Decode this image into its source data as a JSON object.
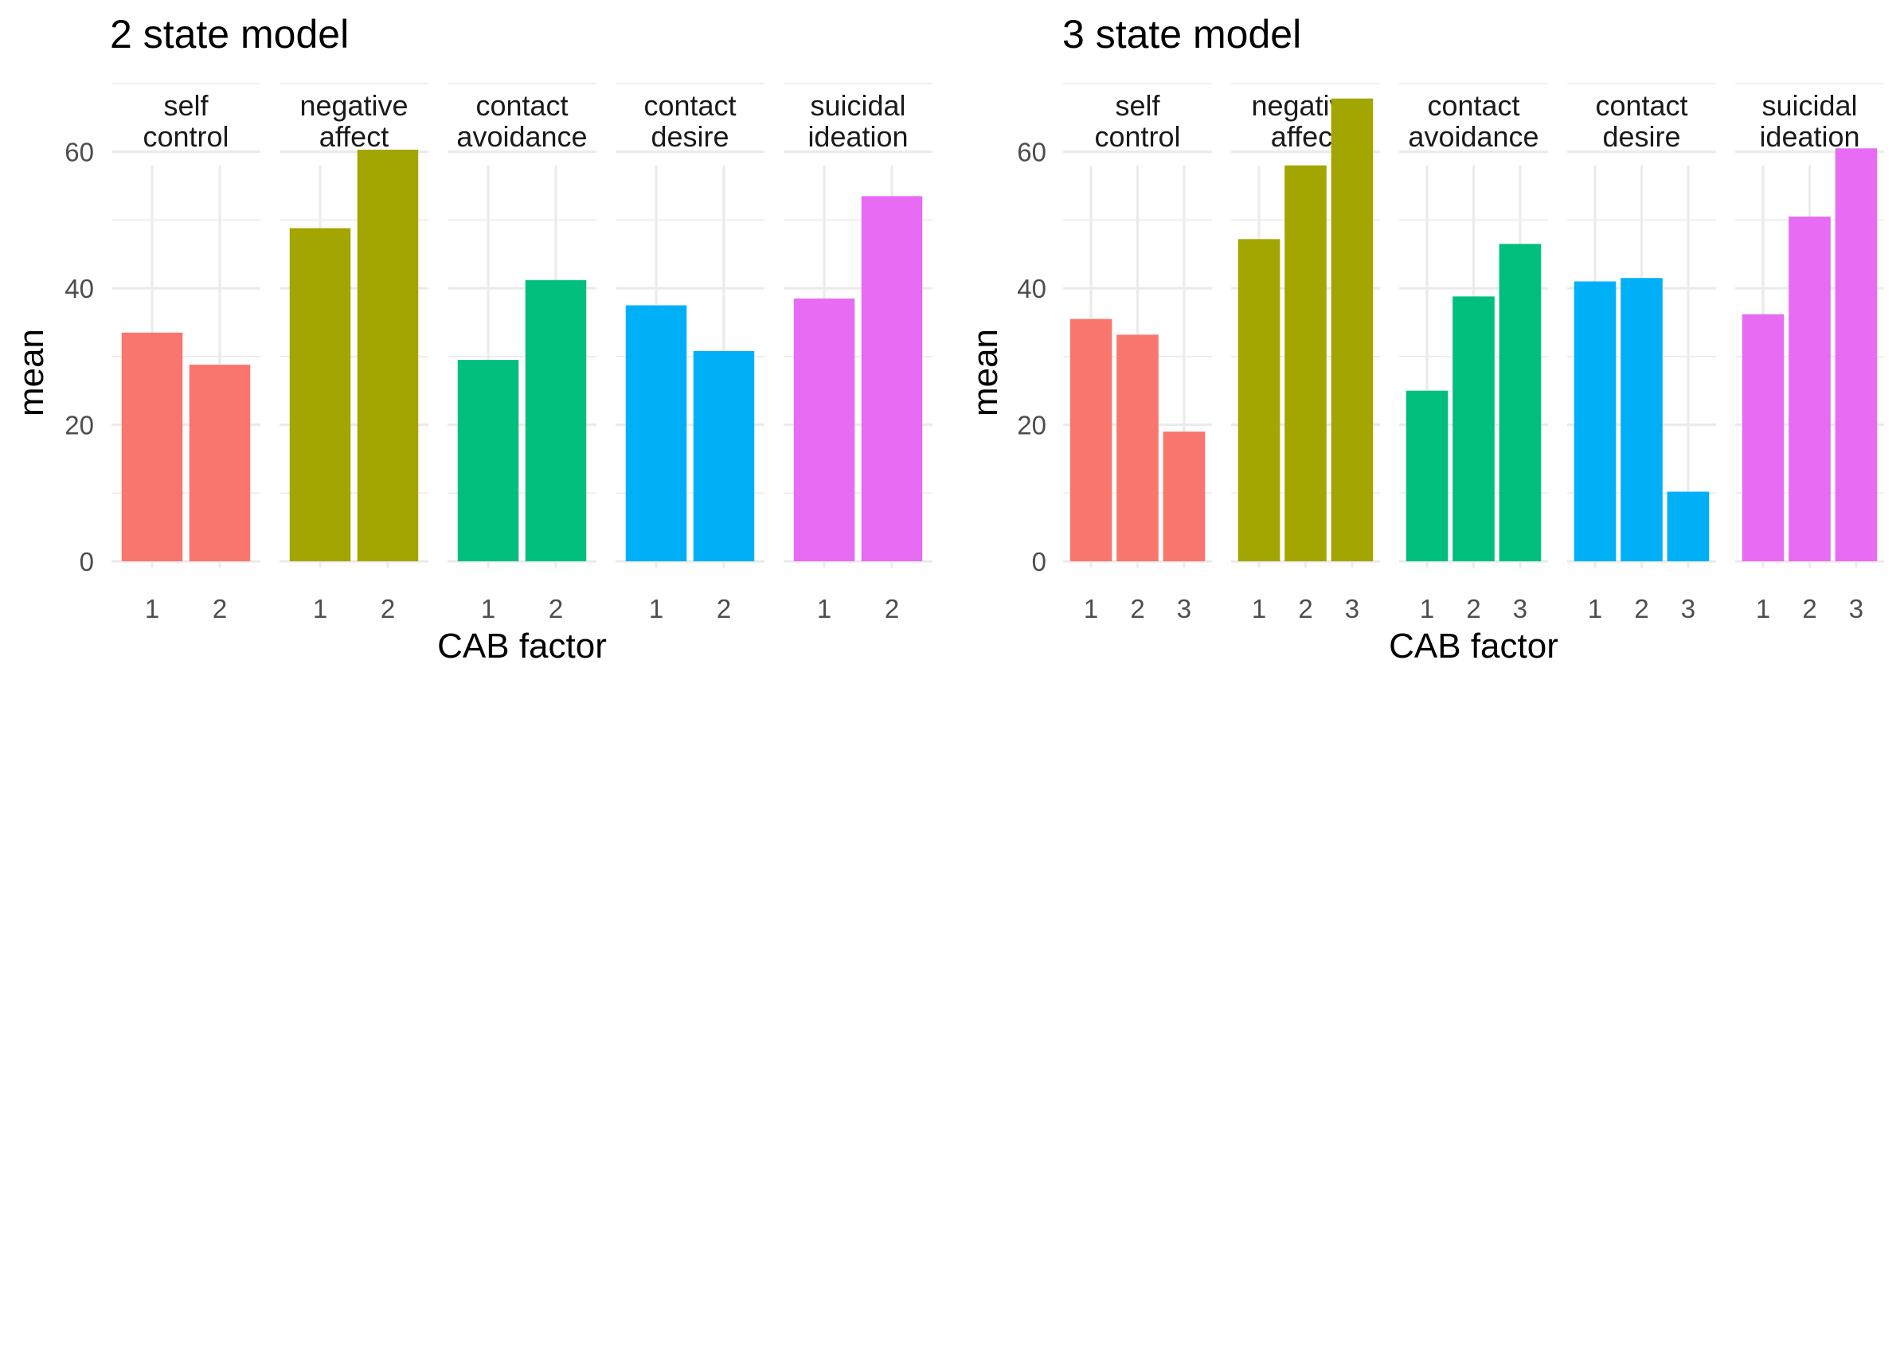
{
  "chart_data": [
    {
      "type": "bar",
      "title": "2 state model",
      "xlabel": "CAB factor",
      "ylabel": "mean",
      "ylim": [
        0,
        75
      ],
      "y_ticks": [
        0,
        20,
        40,
        60
      ],
      "grid": true,
      "categories": [
        "1",
        "2"
      ],
      "facets": [
        {
          "label": [
            "self",
            "control"
          ],
          "color": "#F8766D",
          "values": [
            33.5,
            28.8
          ]
        },
        {
          "label": [
            "negative",
            "affect"
          ],
          "color": "#A3A500",
          "values": [
            48.8,
            60.3
          ]
        },
        {
          "label": [
            "contact",
            "avoidance"
          ],
          "color": "#00BF7D",
          "values": [
            29.5,
            41.2
          ]
        },
        {
          "label": [
            "contact",
            "desire"
          ],
          "color": "#00B0F6",
          "values": [
            37.5,
            30.8
          ]
        },
        {
          "label": [
            "suicidal",
            "ideation"
          ],
          "color": "#E76BF3",
          "values": [
            38.5,
            53.5
          ]
        }
      ]
    },
    {
      "type": "bar",
      "title": "3 state model",
      "xlabel": "CAB factor",
      "ylabel": "mean",
      "ylim": [
        0,
        75
      ],
      "y_ticks": [
        0,
        20,
        40,
        60
      ],
      "grid": true,
      "categories": [
        "1",
        "2",
        "3"
      ],
      "facets": [
        {
          "label": [
            "self",
            "control"
          ],
          "color": "#F8766D",
          "values": [
            35.5,
            33.2,
            19.0
          ]
        },
        {
          "label": [
            "negative",
            "affect"
          ],
          "color": "#A3A500",
          "values": [
            47.2,
            58.0,
            67.8
          ]
        },
        {
          "label": [
            "contact",
            "avoidance"
          ],
          "color": "#00BF7D",
          "values": [
            25.0,
            38.8,
            46.5
          ]
        },
        {
          "label": [
            "contact",
            "desire"
          ],
          "color": "#00B0F6",
          "values": [
            41.0,
            41.5,
            10.2
          ]
        },
        {
          "label": [
            "suicidal",
            "ideation"
          ],
          "color": "#E76BF3",
          "values": [
            36.2,
            50.5,
            60.5
          ]
        }
      ]
    }
  ]
}
